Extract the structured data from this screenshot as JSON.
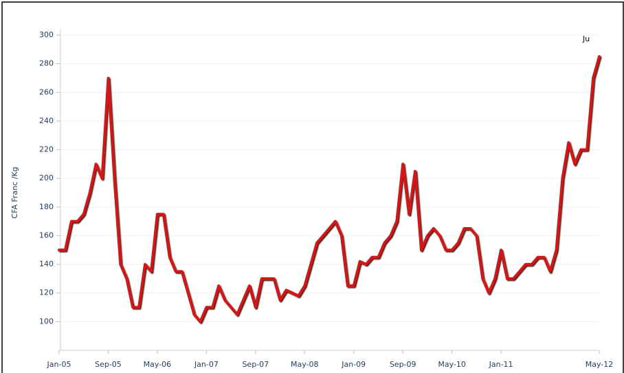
{
  "chart_data": {
    "type": "line",
    "y_label": "CFA Franc /Kg",
    "annotation": "Ju",
    "categories": [
      "Jan-05",
      null,
      null,
      null,
      null,
      null,
      null,
      null,
      "Sep-05",
      null,
      null,
      null,
      null,
      null,
      null,
      null,
      "May-06",
      null,
      null,
      null,
      null,
      null,
      null,
      null,
      "Jan-07",
      null,
      null,
      null,
      null,
      null,
      null,
      null,
      "Sep-07",
      null,
      null,
      null,
      null,
      null,
      null,
      null,
      "May-08",
      null,
      null,
      null,
      null,
      null,
      null,
      null,
      "Jan-09",
      null,
      null,
      null,
      null,
      null,
      null,
      null,
      "Sep-09",
      null,
      null,
      null,
      null,
      null,
      null,
      null,
      "May-10",
      null,
      null,
      null,
      null,
      null,
      null,
      null,
      "Jan-11",
      null,
      null,
      null,
      null,
      null,
      null,
      null,
      null,
      null,
      null,
      null,
      null,
      null,
      null,
      null,
      "May-12"
    ],
    "series": [
      {
        "name": null,
        "color": "#d41414",
        "values": [
          150,
          150,
          170,
          170,
          175,
          190,
          210,
          200,
          270,
          200,
          140,
          130,
          110,
          110,
          140,
          135,
          175,
          175,
          145,
          135,
          135,
          120,
          105,
          100,
          110,
          110,
          125,
          115,
          110,
          105,
          115,
          125,
          110,
          130,
          130,
          130,
          115,
          122,
          120,
          118,
          125,
          140,
          155,
          160,
          165,
          170,
          160,
          125,
          125,
          142,
          140,
          145,
          145,
          155,
          160,
          170,
          210,
          175,
          205,
          150,
          160,
          165,
          160,
          150,
          150,
          155,
          165,
          165,
          160,
          130,
          120,
          130,
          150,
          130,
          130,
          135,
          140,
          140,
          145,
          145,
          135,
          150,
          200,
          225,
          210,
          220,
          220,
          270,
          285
        ]
      }
    ],
    "ylim": [
      80,
      300
    ],
    "yticks": [
      100,
      120,
      140,
      160,
      180,
      200,
      220,
      240,
      260,
      280,
      300
    ],
    "grid": true
  }
}
